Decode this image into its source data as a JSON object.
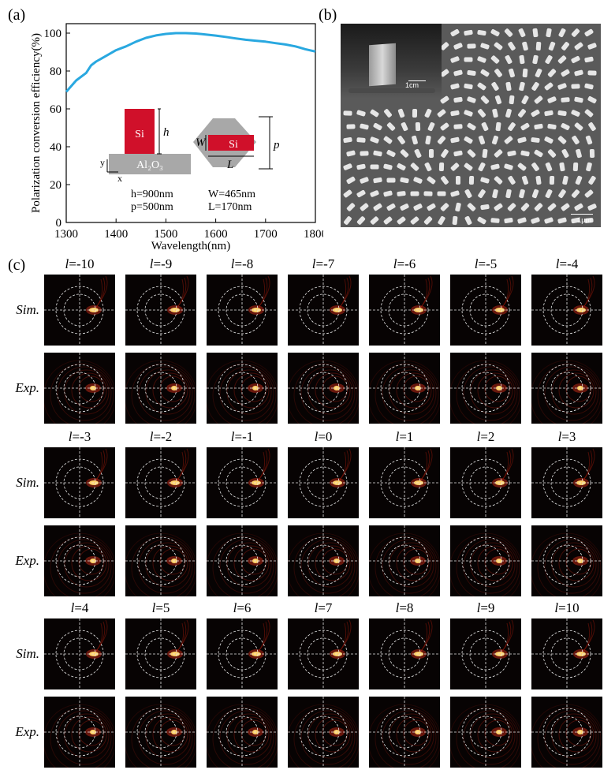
{
  "panels": {
    "a_label": "(a)",
    "b_label": "(b)",
    "c_label": "(c)"
  },
  "chart_data": {
    "type": "line",
    "xlabel": "Wavelength(nm)",
    "ylabel": "Polarization conversion efficiency(%)",
    "xlim": [
      1300,
      1800
    ],
    "ylim": [
      0,
      105
    ],
    "xticks": [
      1300,
      1400,
      1500,
      1600,
      1700,
      1800
    ],
    "yticks": [
      0,
      20,
      40,
      60,
      80,
      100
    ],
    "grid": false,
    "line_color": "#29a8e0",
    "x": [
      1300,
      1320,
      1340,
      1350,
      1360,
      1380,
      1400,
      1410,
      1420,
      1440,
      1460,
      1480,
      1500,
      1520,
      1540,
      1560,
      1580,
      1600,
      1620,
      1640,
      1660,
      1680,
      1700,
      1720,
      1740,
      1760,
      1780,
      1800
    ],
    "y": [
      69,
      75,
      79,
      83,
      85,
      88,
      91,
      92,
      93,
      95.5,
      97.5,
      98.8,
      99.6,
      100,
      100,
      99.8,
      99.3,
      98.7,
      98,
      97.2,
      96.5,
      96,
      95.5,
      94.7,
      94,
      93,
      91.5,
      90.3
    ]
  },
  "inset": {
    "si_label": "Si",
    "substrate_label": "Al₂O₃",
    "h_symbol": "h",
    "w_symbol": "W",
    "l_symbol": "L",
    "p_symbol": "p",
    "axis_y": "y",
    "axis_x": "x",
    "si_color": "#d0102a",
    "substrate_color": "#a8a8a8",
    "params": {
      "h": "h=900nm",
      "p": "p=500nm",
      "w": "W=465nm",
      "l": "L=170nm"
    }
  },
  "sem": {
    "photo_scale": "1cm",
    "sem_scale": "1μm"
  },
  "grid": {
    "sim_label": "Sim.",
    "exp_label": "Exp.",
    "l_symbol": "l",
    "groups": [
      [
        "=-10",
        "=-9",
        "=-8",
        "=-7",
        "=-6",
        "=-5",
        "=-4"
      ],
      [
        "=-3",
        "=-2",
        "=-1",
        "=0",
        "=1",
        "=2",
        "=3"
      ],
      [
        "=4",
        "=5",
        "=6",
        "=7",
        "=8",
        "=9",
        "=10"
      ]
    ]
  }
}
